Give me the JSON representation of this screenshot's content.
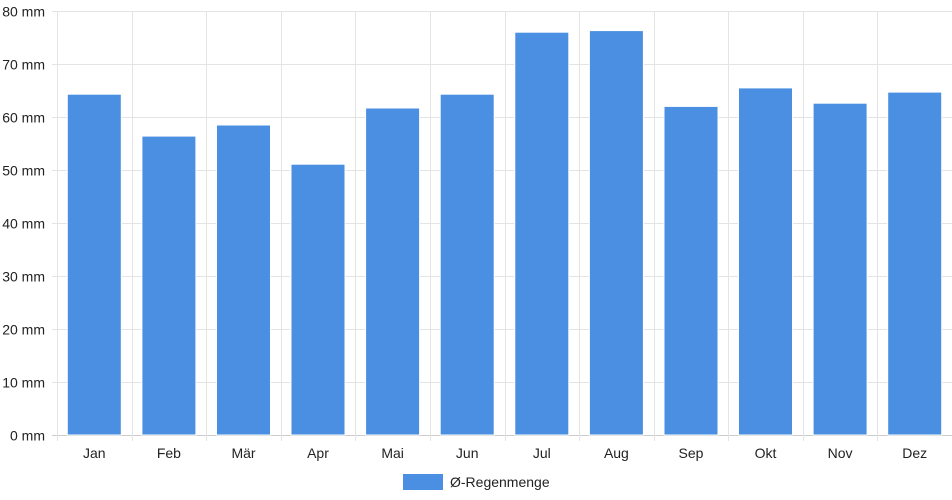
{
  "chart_data": {
    "type": "bar",
    "categories": [
      "Jan",
      "Feb",
      "Mär",
      "Apr",
      "Mai",
      "Jun",
      "Jul",
      "Aug",
      "Sep",
      "Okt",
      "Nov",
      "Dez"
    ],
    "series": [
      {
        "name": "Ø-Regenmenge",
        "values": [
          64.3,
          56.4,
          58.5,
          51.1,
          61.7,
          64.3,
          76.0,
          76.3,
          62.0,
          65.5,
          62.6,
          64.7
        ],
        "color": "#4a8fe2"
      }
    ],
    "y_ticks": [
      "0 mm",
      "10 mm",
      "20 mm",
      "30 mm",
      "40 mm",
      "50 mm",
      "60 mm",
      "70 mm",
      "80 mm"
    ],
    "ylim": [
      0,
      80
    ],
    "y_unit": "mm",
    "grid": true,
    "legend_position": "bottom",
    "grid_color": "#e4e4e4",
    "axis_color": "#cccccc"
  }
}
